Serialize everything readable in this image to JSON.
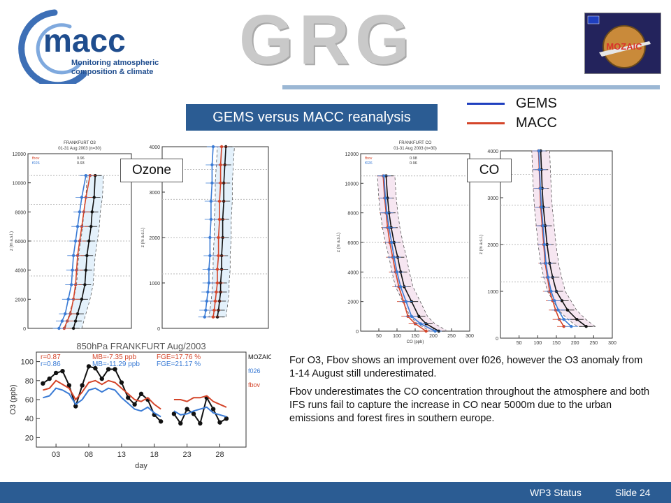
{
  "header": {
    "macc_logo_word": "macc",
    "macc_logo_tagline": "Monitoring atmospheric composition & climate",
    "grg_logo_text": "GRG",
    "mozaic_logo_text": "MOZAIC"
  },
  "slide": {
    "title": "GEMS versus MACC reanalysis",
    "legend": [
      {
        "label": "GEMS",
        "color": "#1f3fbf"
      },
      {
        "label": "MACC",
        "color": "#d4452a"
      }
    ],
    "ozone_label": "Ozone",
    "co_label": "CO",
    "paragraphs": [
      "For O3, Fbov shows an improvement over f026, however the O3 anomaly from 1-14 August still underestimated.",
      "Fbov underestimates the CO concentration throughout the atmosphere and both IFS runs fail to capture the increase in CO near 5000m due to the urban emissions and forest fires in southern europe."
    ]
  },
  "footer": {
    "section": "WP3 Status",
    "slide_number": "Slide 24"
  },
  "chart_data": [
    {
      "type": "line",
      "title": "FRANKFURT O3",
      "subtitle": "01-31 Aug 2003 (n=30)",
      "ylabel": "z (m a.s.l.)",
      "ylim": [
        0,
        12000
      ],
      "yticks": [
        "0",
        "2000",
        "4000",
        "6000",
        "8000",
        "10000",
        "12000"
      ],
      "legend_rows": [
        {
          "name": "fbov",
          "value": "0.96",
          "color": "#d4452a"
        },
        {
          "name": "f026",
          "value": "0.93",
          "color": "#3a7bd5"
        }
      ],
      "series": [
        {
          "name": "MOZAIC",
          "color": "#111111",
          "x": [
            44,
            46,
            48,
            52,
            55,
            56,
            57,
            59,
            61,
            62,
            64,
            65
          ],
          "y": [
            0,
            500,
            1000,
            2000,
            3000,
            4000,
            5000,
            6000,
            7000,
            8000,
            9000,
            10500
          ]
        },
        {
          "name": "fbov",
          "color": "#d4452a",
          "x": [
            35,
            38,
            41,
            44,
            46,
            47,
            48,
            50,
            52,
            54,
            56,
            60
          ],
          "y": [
            0,
            500,
            1000,
            2000,
            3000,
            4000,
            5000,
            6000,
            7000,
            8000,
            9000,
            10500
          ]
        },
        {
          "name": "f026",
          "color": "#3a7bd5",
          "x": [
            30,
            33,
            36,
            39,
            42,
            43,
            44,
            46,
            48,
            50,
            52,
            56
          ],
          "y": [
            0,
            500,
            1000,
            2000,
            3000,
            4000,
            5000,
            6000,
            7000,
            8000,
            9000,
            10500
          ]
        }
      ]
    },
    {
      "type": "line",
      "ylim": [
        0,
        4000
      ],
      "yticks": [
        "0",
        "1000",
        "2000",
        "3000",
        "4000"
      ],
      "ylabel": "z (m a.s.l.)",
      "series": [
        {
          "name": "MOZAIC",
          "color": "#111111",
          "x": [
            52,
            53,
            54,
            55,
            55,
            56,
            56,
            57,
            57,
            58,
            58,
            59,
            60
          ],
          "y": [
            250,
            400,
            600,
            800,
            1000,
            1300,
            1600,
            2000,
            2400,
            2800,
            3200,
            3600,
            4000
          ]
        },
        {
          "name": "fbov",
          "color": "#d4452a",
          "x": [
            48,
            49,
            50,
            51,
            52,
            52,
            53,
            53,
            54,
            54,
            55,
            55,
            56
          ],
          "y": [
            250,
            400,
            600,
            800,
            1000,
            1300,
            1600,
            2000,
            2400,
            2800,
            3200,
            3600,
            4000
          ]
        },
        {
          "name": "f026",
          "color": "#3a7bd5",
          "x": [
            40,
            41,
            42,
            43,
            44,
            44,
            45,
            45,
            46,
            46,
            47,
            47,
            48
          ],
          "y": [
            250,
            400,
            600,
            800,
            1000,
            1300,
            1600,
            2000,
            2400,
            2800,
            3200,
            3600,
            4000
          ]
        }
      ]
    },
    {
      "type": "line",
      "title": "FRANKFURT CO",
      "subtitle": "01-31 Aug 2003 (n=30)",
      "xlabel": "CO (ppb)",
      "ylabel": "z (m a.s.l.)",
      "xlim": [
        0,
        300
      ],
      "ylim": [
        0,
        12000
      ],
      "xticks": [
        "50",
        "100",
        "150",
        "200",
        "250",
        "300"
      ],
      "yticks": [
        "0",
        "2000",
        "4000",
        "6000",
        "8000",
        "10000",
        "12000"
      ],
      "legend_rows": [
        {
          "name": "fbov",
          "value": "0.98",
          "color": "#d4452a"
        },
        {
          "name": "f026",
          "value": "0.96",
          "color": "#3a7bd5"
        }
      ],
      "series": [
        {
          "name": "MOZAIC",
          "color": "#111111",
          "x": [
            215,
            180,
            160,
            140,
            120,
            110,
            102,
            92,
            84,
            78,
            74,
            70
          ],
          "y": [
            0,
            500,
            1000,
            2000,
            3000,
            4000,
            5000,
            6000,
            7000,
            8000,
            9000,
            10500
          ]
        },
        {
          "name": "fbov",
          "color": "#d4452a",
          "x": [
            180,
            150,
            130,
            118,
            105,
            96,
            88,
            80,
            74,
            70,
            66,
            62
          ],
          "y": [
            0,
            500,
            1000,
            2000,
            3000,
            4000,
            5000,
            6000,
            7000,
            8000,
            9000,
            10500
          ]
        },
        {
          "name": "f026",
          "color": "#3a7bd5",
          "x": [
            205,
            165,
            140,
            125,
            110,
            100,
            92,
            85,
            78,
            72,
            68,
            64
          ],
          "y": [
            0,
            500,
            1000,
            2000,
            3000,
            4000,
            5000,
            6000,
            7000,
            8000,
            9000,
            10500
          ]
        }
      ]
    },
    {
      "type": "line",
      "xlabel": "CO (ppb)",
      "ylabel": "z (m a.s.l.)",
      "xlim": [
        0,
        300
      ],
      "ylim": [
        0,
        4000
      ],
      "xticks": [
        "50",
        "100",
        "150",
        "200",
        "250",
        "300"
      ],
      "yticks": [
        "0",
        "1000",
        "2000",
        "3000",
        "4000"
      ],
      "series": [
        {
          "name": "MOZAIC",
          "color": "#111111",
          "x": [
            230,
            205,
            180,
            165,
            150,
            140,
            132,
            125,
            120,
            115,
            112,
            110,
            108
          ],
          "y": [
            250,
            400,
            600,
            800,
            1000,
            1300,
            1600,
            2000,
            2400,
            2800,
            3200,
            3600,
            4000
          ]
        },
        {
          "name": "fbov",
          "color": "#d4452a",
          "x": [
            170,
            158,
            148,
            140,
            132,
            126,
            120,
            116,
            112,
            108,
            106,
            104,
            102
          ],
          "y": [
            250,
            400,
            600,
            800,
            1000,
            1300,
            1600,
            2000,
            2400,
            2800,
            3200,
            3600,
            4000
          ]
        },
        {
          "name": "f026",
          "color": "#3a7bd5",
          "x": [
            190,
            170,
            155,
            145,
            136,
            128,
            122,
            118,
            114,
            110,
            107,
            105,
            103
          ],
          "y": [
            250,
            400,
            600,
            800,
            1000,
            1300,
            1600,
            2000,
            2400,
            2800,
            3200,
            3600,
            4000
          ]
        }
      ]
    },
    {
      "type": "line",
      "title": "850hPa FRANKFURT Aug/2003",
      "xlabel": "day",
      "ylabel": "O3 (ppb)",
      "xlim": [
        0,
        32
      ],
      "ylim": [
        10,
        110
      ],
      "xticks": [
        "03",
        "08",
        "13",
        "18",
        "23",
        "28"
      ],
      "yticks": [
        "20",
        "40",
        "60",
        "80",
        "100"
      ],
      "stats": [
        {
          "text": "r=0.87",
          "color": "#d4452a"
        },
        {
          "text": "r=0.86",
          "color": "#3a7bd5"
        },
        {
          "text": "MB=-7.35 ppb",
          "color": "#d4452a"
        },
        {
          "text": "MB=-11.29 ppb",
          "color": "#3a7bd5"
        },
        {
          "text": "FGE=17.76 %",
          "color": "#d4452a"
        },
        {
          "text": "FGE=21.17 %",
          "color": "#3a7bd5"
        }
      ],
      "legend": [
        {
          "name": "MOZAIC",
          "color": "#111111"
        },
        {
          "name": "f026",
          "color": "#3a7bd5"
        },
        {
          "name": "fbov",
          "color": "#d4452a"
        }
      ],
      "series": [
        {
          "name": "MOZAIC",
          "color": "#111111",
          "x": [
            1,
            2,
            3,
            4,
            5,
            6,
            7,
            8,
            9,
            10,
            11,
            12,
            13,
            14,
            15,
            16,
            17,
            18,
            19
          ],
          "y": [
            77,
            82,
            88,
            90,
            75,
            53,
            75,
            95,
            93,
            82,
            92,
            92,
            78,
            62,
            55,
            66,
            60,
            44,
            37
          ]
        },
        {
          "name": "MOZAIC",
          "color": "#111111",
          "x": [
            21,
            22,
            23,
            24,
            25,
            26,
            27,
            28,
            29
          ],
          "y": [
            45,
            35,
            50,
            45,
            35,
            62,
            50,
            36,
            40
          ]
        },
        {
          "name": "fbov",
          "color": "#d4452a",
          "x": [
            1,
            2,
            3,
            4,
            5,
            6,
            7,
            8,
            9,
            10,
            11,
            12,
            13,
            14,
            15,
            16,
            17,
            18,
            19
          ],
          "y": [
            70,
            72,
            80,
            76,
            72,
            60,
            68,
            78,
            80,
            76,
            80,
            78,
            72,
            66,
            60,
            58,
            62,
            55,
            50
          ]
        },
        {
          "name": "fbov",
          "color": "#d4452a",
          "x": [
            21,
            22,
            23,
            24,
            25,
            26,
            27,
            28,
            29
          ],
          "y": [
            60,
            60,
            58,
            62,
            62,
            64,
            58,
            55,
            52
          ]
        },
        {
          "name": "f026",
          "color": "#3a7bd5",
          "x": [
            1,
            2,
            3,
            4,
            5,
            6,
            7,
            8,
            9,
            10,
            11,
            12,
            13,
            14,
            15,
            16,
            17,
            18,
            19
          ],
          "y": [
            62,
            64,
            72,
            70,
            66,
            55,
            60,
            70,
            72,
            68,
            72,
            70,
            62,
            56,
            50,
            48,
            52,
            46,
            42
          ]
        },
        {
          "name": "f026",
          "color": "#3a7bd5",
          "x": [
            21,
            22,
            23,
            24,
            25,
            26,
            27,
            28,
            29
          ],
          "y": [
            48,
            44,
            45,
            48,
            50,
            52,
            46,
            44,
            42
          ]
        }
      ]
    }
  ]
}
